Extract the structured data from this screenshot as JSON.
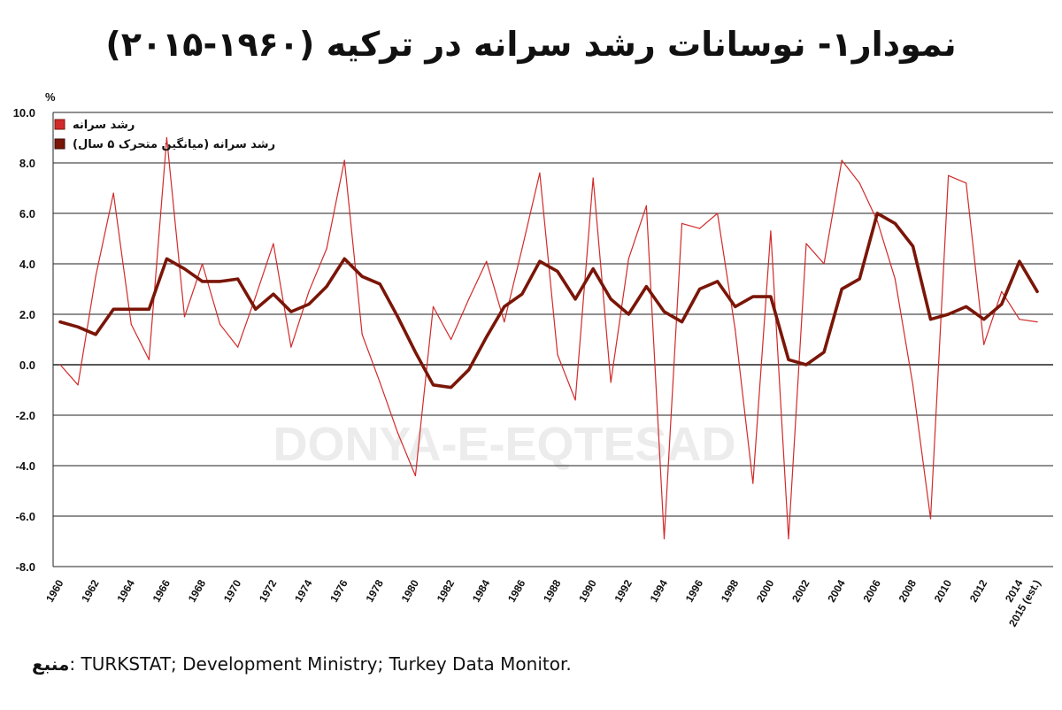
{
  "title": "نمودار۱- نوسانات رشد سرانه در ترکیه (۱۹۶۰-۲۰۱۵)",
  "source": {
    "label": "منبع",
    "text": ": TURKSTAT; Development Ministry; Turkey Data Monitor."
  },
  "colors": {
    "annual": "#d12a2a",
    "moving_avg": "#7a1608",
    "grid": "#222222"
  },
  "chart_data": {
    "type": "line",
    "ylabel": "%",
    "ylim": [
      -8,
      10
    ],
    "yticks": [
      "10.0",
      "8.0",
      "6.0",
      "4.0",
      "2.0",
      "0.0",
      "-2.0",
      "-4.0",
      "-6.0",
      "-8.0"
    ],
    "ytick_values": [
      10,
      8,
      6,
      4,
      2,
      0,
      -2,
      -4,
      -6,
      -8
    ],
    "xtick_labels": [
      "1960",
      "1962",
      "1964",
      "1966",
      "1968",
      "1970",
      "1972",
      "1974",
      "1976",
      "1978",
      "1980",
      "1982",
      "1984",
      "1986",
      "1988",
      "1990",
      "1992",
      "1994",
      "1996",
      "1998",
      "2000",
      "2002",
      "2004",
      "2006",
      "2008",
      "2010",
      "2012",
      "2014",
      "2015 (est.)"
    ],
    "xtick_values": [
      1960,
      1962,
      1964,
      1966,
      1968,
      1970,
      1972,
      1974,
      1976,
      1978,
      1980,
      1982,
      1984,
      1986,
      1988,
      1990,
      1992,
      1994,
      1996,
      1998,
      2000,
      2002,
      2004,
      2006,
      2008,
      2010,
      2012,
      2014,
      2015
    ],
    "legend_position": "top-left",
    "series": [
      {
        "name": "رشد سرانه",
        "x": [
          1960,
          1961,
          1962,
          1963,
          1964,
          1965,
          1966,
          1967,
          1968,
          1969,
          1970,
          1971,
          1972,
          1973,
          1974,
          1975,
          1976,
          1977,
          1978,
          1979,
          1980,
          1981,
          1982,
          1983,
          1984,
          1985,
          1986,
          1987,
          1988,
          1989,
          1990,
          1991,
          1992,
          1993,
          1994,
          1995,
          1996,
          1997,
          1998,
          1999,
          2000,
          2001,
          2002,
          2003,
          2004,
          2005,
          2006,
          2007,
          2008,
          2009,
          2010,
          2011,
          2012,
          2013,
          2014,
          2015
        ],
        "values": [
          0.0,
          -0.8,
          3.5,
          6.8,
          1.6,
          0.2,
          9.0,
          1.9,
          4.0,
          1.6,
          0.7,
          2.7,
          4.8,
          0.7,
          2.9,
          4.6,
          8.1,
          1.2,
          -0.7,
          -2.7,
          -4.4,
          2.3,
          1.0,
          2.6,
          4.1,
          1.7,
          4.6,
          7.6,
          0.4,
          -1.4,
          7.4,
          -0.7,
          4.2,
          6.3,
          -6.9,
          5.6,
          5.4,
          6.0,
          1.4,
          -4.7,
          5.3,
          -6.9,
          4.8,
          4.0,
          8.1,
          7.2,
          5.7,
          3.4,
          -0.8,
          -6.1,
          7.5,
          7.2,
          0.8,
          2.9,
          1.8,
          1.7
        ],
        "style": "thin"
      },
      {
        "name": "رشد سرانه (میانگین متحرک ۵ سال)",
        "x": [
          1960,
          1961,
          1962,
          1963,
          1964,
          1965,
          1966,
          1967,
          1968,
          1969,
          1970,
          1971,
          1972,
          1973,
          1974,
          1975,
          1976,
          1977,
          1978,
          1979,
          1980,
          1981,
          1982,
          1983,
          1984,
          1985,
          1986,
          1987,
          1988,
          1989,
          1990,
          1991,
          1992,
          1993,
          1994,
          1995,
          1996,
          1997,
          1998,
          1999,
          2000,
          2001,
          2002,
          2003,
          2004,
          2005,
          2006,
          2007,
          2008,
          2009,
          2010,
          2011,
          2012,
          2013,
          2014,
          2015
        ],
        "values": [
          1.7,
          1.5,
          1.2,
          2.2,
          2.2,
          2.2,
          4.2,
          3.8,
          3.3,
          3.3,
          3.4,
          2.2,
          2.8,
          2.1,
          2.4,
          3.1,
          4.2,
          3.5,
          3.2,
          1.9,
          0.5,
          -0.8,
          -0.9,
          -0.2,
          1.1,
          2.3,
          2.8,
          4.1,
          3.7,
          2.6,
          3.8,
          2.6,
          2.0,
          3.1,
          2.1,
          1.7,
          3.0,
          3.3,
          2.3,
          2.7,
          2.7,
          0.2,
          0.0,
          0.5,
          3.0,
          3.4,
          6.0,
          5.6,
          4.7,
          1.8,
          2.0,
          2.3,
          1.8,
          2.4,
          4.1,
          2.9
        ],
        "style": "thick"
      }
    ]
  },
  "watermark": "DONYA-E-EQTESAD"
}
